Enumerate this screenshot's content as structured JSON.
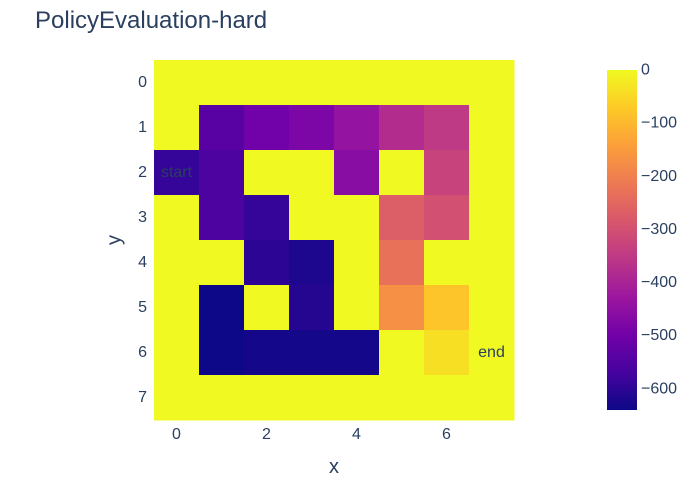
{
  "chart_data": {
    "type": "heatmap",
    "title": "PolicyEvaluation-hard",
    "xlabel": "x",
    "ylabel": "y",
    "x_ticks": [
      "0",
      "2",
      "4",
      "6"
    ],
    "y_ticks": [
      "0",
      "1",
      "2",
      "3",
      "4",
      "5",
      "6",
      "7"
    ],
    "x": [
      0,
      1,
      2,
      3,
      4,
      5,
      6,
      7
    ],
    "y": [
      0,
      1,
      2,
      3,
      4,
      5,
      6,
      7
    ],
    "z": [
      [
        0,
        0,
        0,
        0,
        0,
        0,
        0,
        0
      ],
      [
        0,
        -540,
        -500,
        -480,
        -440,
        -380,
        -350,
        0
      ],
      [
        -590,
        -560,
        0,
        0,
        -460,
        0,
        -330,
        0
      ],
      [
        0,
        -560,
        -590,
        0,
        0,
        -270,
        -300,
        0
      ],
      [
        0,
        0,
        -600,
        -620,
        0,
        -230,
        0,
        0
      ],
      [
        0,
        -640,
        0,
        -610,
        0,
        -170,
        -80,
        0
      ],
      [
        0,
        -640,
        -630,
        -630,
        -630,
        0,
        -40,
        0
      ],
      [
        0,
        0,
        0,
        0,
        0,
        0,
        0,
        0
      ]
    ],
    "annotations": [
      {
        "x": 0,
        "y": 2,
        "text": "start"
      },
      {
        "x": 7,
        "y": 6,
        "text": "end"
      }
    ],
    "colorscale": [
      "#0d0887",
      "#46039f",
      "#7201a8",
      "#9c179e",
      "#bd3786",
      "#d8576b",
      "#ed7953",
      "#fb9f3a",
      "#fdca26",
      "#f0f921"
    ],
    "zmin": -640,
    "zmax": 0,
    "colorbar_ticks": [
      "0",
      "−100",
      "−200",
      "−300",
      "−400",
      "−500",
      "−600"
    ],
    "colorbar_tick_values": [
      0,
      -100,
      -200,
      -300,
      -400,
      -500,
      -600
    ],
    "yaxis_reversed": true
  }
}
